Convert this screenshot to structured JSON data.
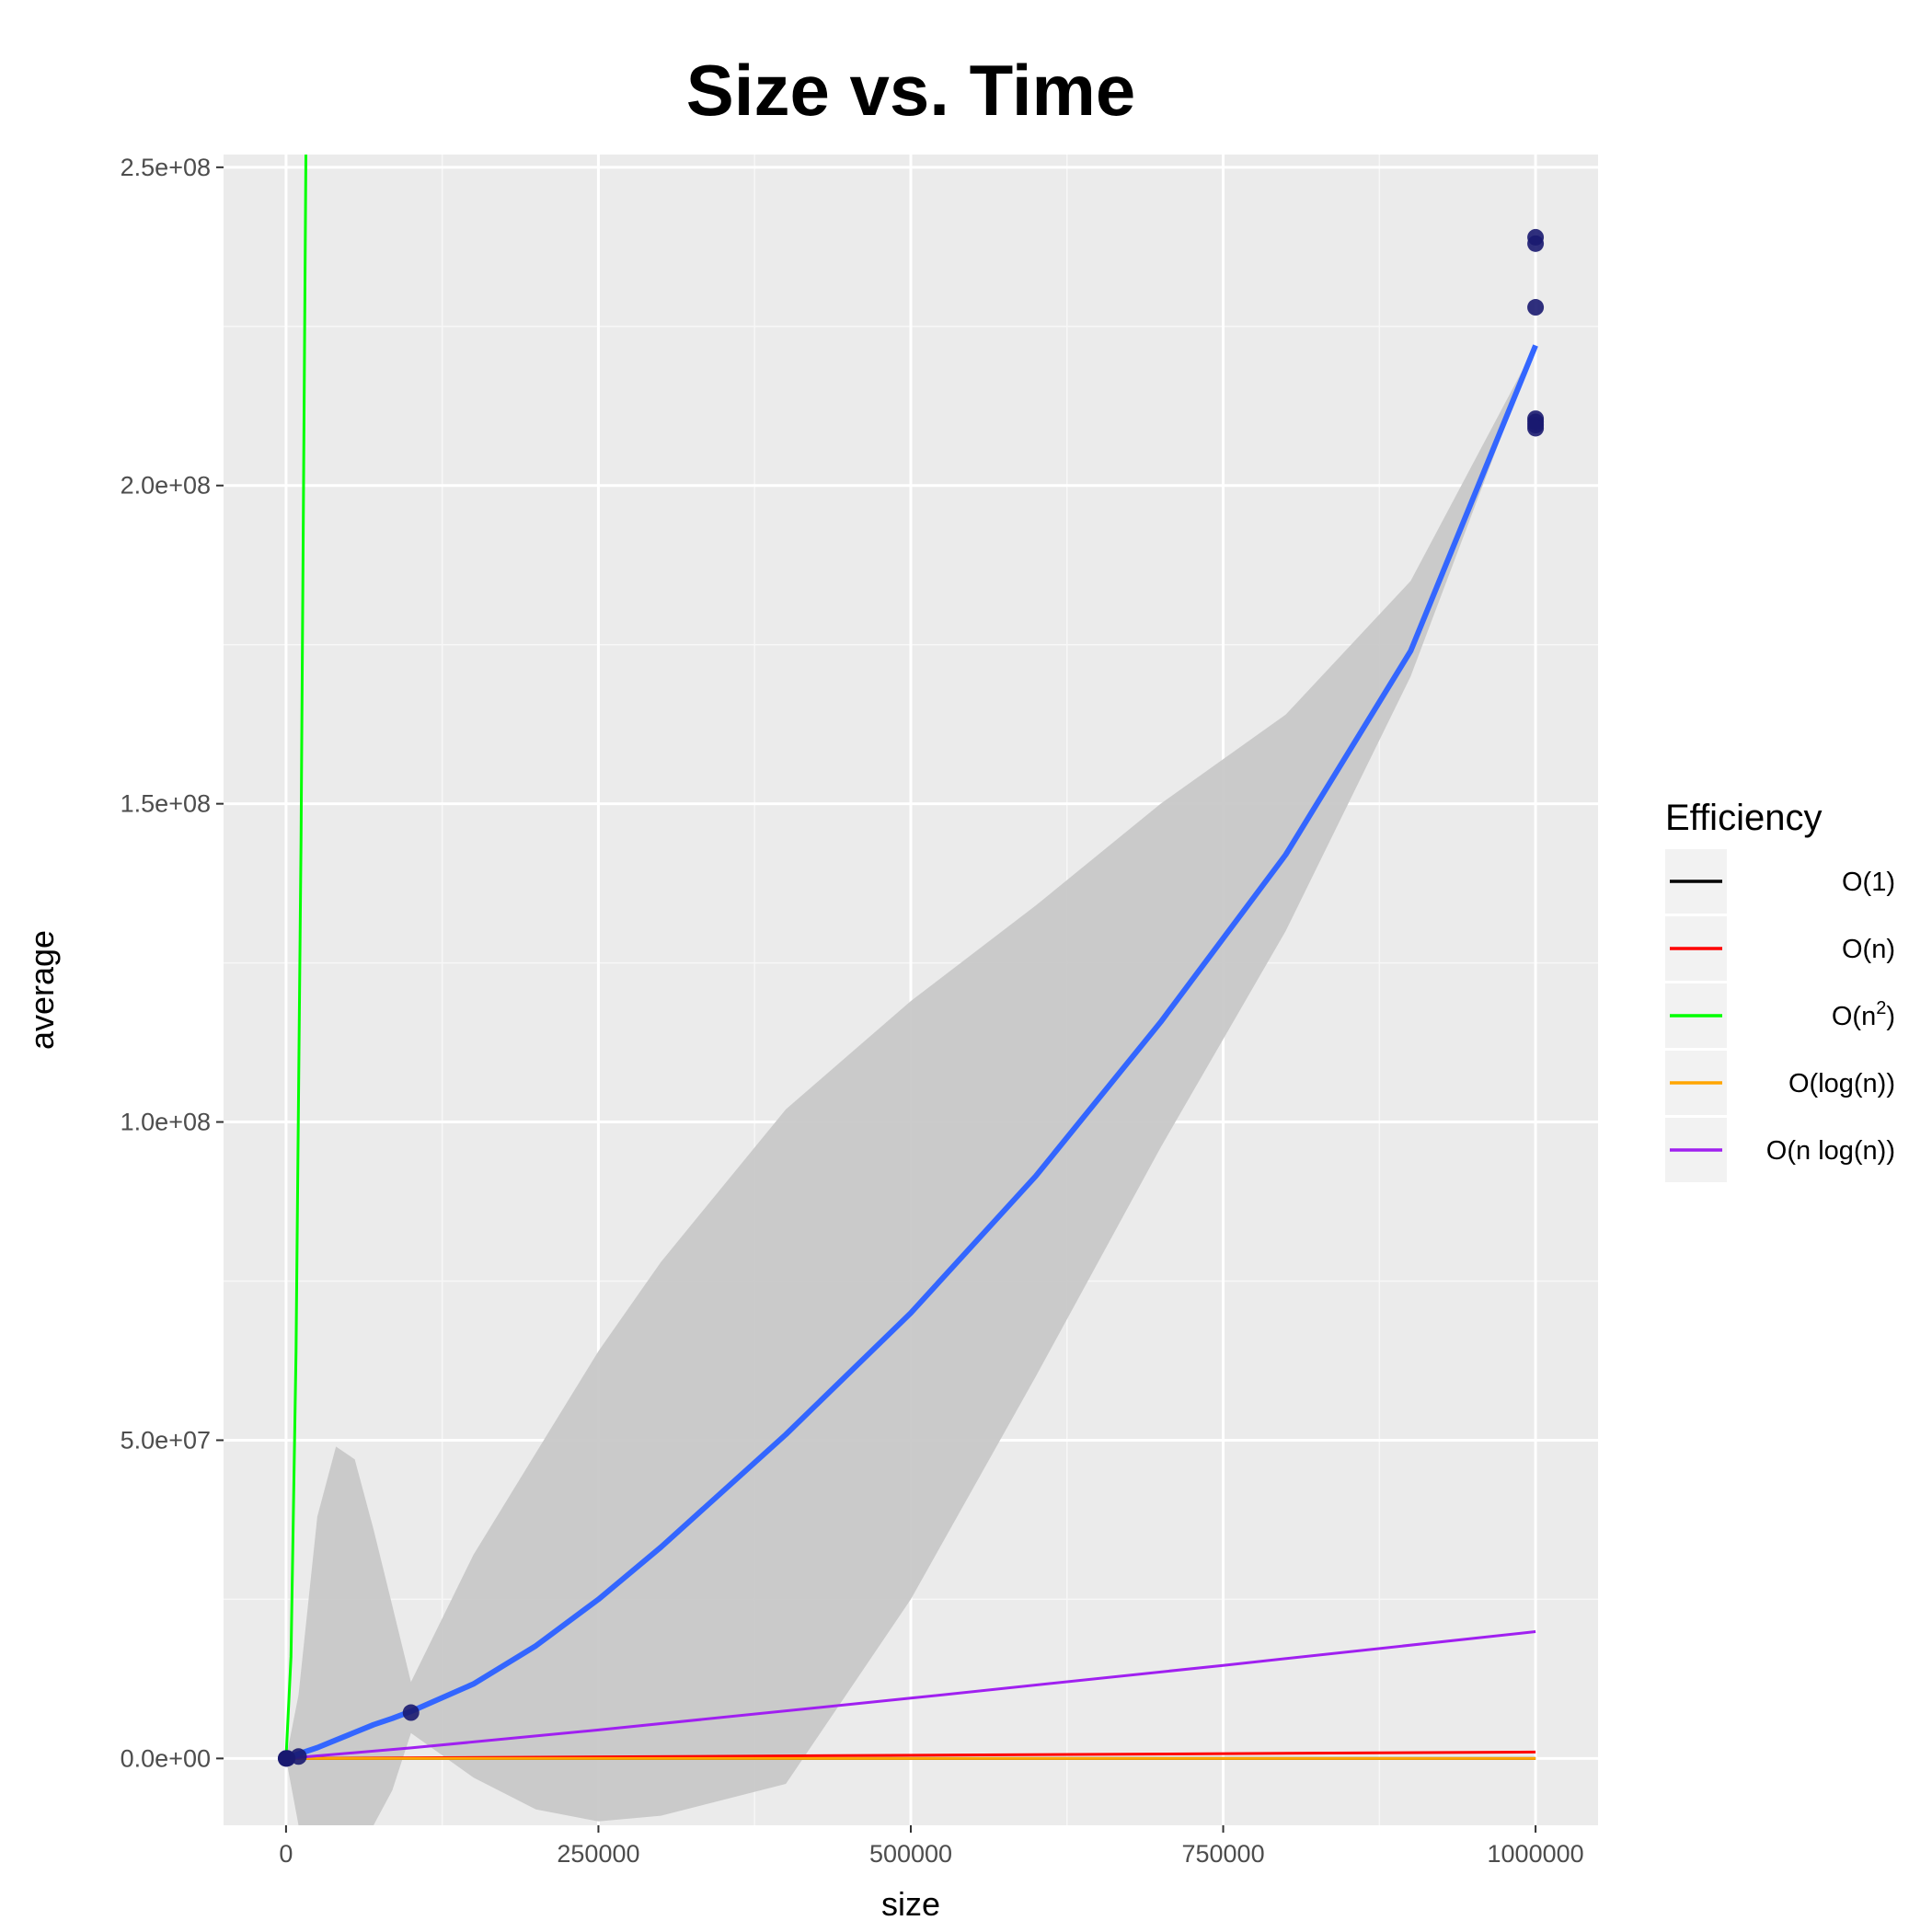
{
  "chart_data": {
    "type": "scatter",
    "title": "Size vs. Time",
    "xlabel": "size",
    "ylabel": "average",
    "xlim": [
      -50000,
      1050000
    ],
    "ylim": [
      -10500000,
      252000000
    ],
    "x_ticks": [
      0,
      250000,
      500000,
      750000,
      1000000
    ],
    "x_tick_labels": [
      "0",
      "250000",
      "500000",
      "750000",
      "1000000"
    ],
    "y_ticks": [
      0,
      50000000,
      100000000,
      150000000,
      200000000,
      250000000
    ],
    "y_tick_labels": [
      "0.0e+00",
      "5.0e+07",
      "1.0e+08",
      "1.5e+08",
      "2.0e+08",
      "2.5e+08"
    ],
    "grid": true,
    "legend": {
      "title": "Efficiency",
      "placement": "right",
      "entries": [
        {
          "label": "O(1)",
          "color": "#000000"
        },
        {
          "label": "O(n)",
          "color": "#ff0000"
        },
        {
          "label": "O(n",
          "sup": "2",
          "suffix": ")",
          "color": "#00ff00"
        },
        {
          "label": "O(log(n))",
          "color": "#ffa500"
        },
        {
          "label": "O(n log(n))",
          "color": "#a020f0"
        }
      ]
    },
    "points": {
      "color": "#191970",
      "x": [
        10,
        100,
        1000,
        10000,
        100000,
        1000000,
        1000000,
        1000000,
        1000000,
        1000000,
        1000000,
        1000000
      ],
      "y": [
        0,
        0,
        20000,
        300000,
        7200000,
        239000000,
        238000000,
        228000000,
        210500000,
        210000000,
        209500000,
        209000000
      ]
    },
    "smooth": {
      "color": "#3366ff",
      "band_color": "#c8c8c8",
      "x": [
        0,
        10000,
        25000,
        40000,
        55000,
        70000,
        85000,
        100000,
        150000,
        200000,
        250000,
        300000,
        400000,
        500000,
        600000,
        700000,
        800000,
        900000,
        1000000
      ],
      "y": [
        0,
        700000,
        1700000,
        2900000,
        4100000,
        5300000,
        6300000,
        7400000,
        11700000,
        17700000,
        25000000,
        33200000,
        50900000,
        70000000,
        91500000,
        115700000,
        142000000,
        174000000,
        222000000
      ],
      "upper": [
        0,
        10000000,
        38000000,
        49000000,
        47000000,
        36000000,
        24000000,
        12000000,
        32000000,
        48000000,
        64000000,
        78000000,
        102000000,
        119000000,
        134000000,
        150000000,
        164000000,
        185000000,
        222000000
      ],
      "lower": [
        0,
        -10500000,
        -10500000,
        -10500000,
        -10500000,
        -10500000,
        -5000000,
        4000000,
        -3000000,
        -8000000,
        -9900000,
        -9000000,
        -4000000,
        25000000,
        60000000,
        96000000,
        130000000,
        170000000,
        222000000
      ]
    },
    "reference_lines": [
      {
        "name": "O(1)",
        "color": "#000000",
        "x": [
          0,
          1000000
        ],
        "y": [
          1,
          1
        ]
      },
      {
        "name": "O(n)",
        "color": "#ff0000",
        "x": [
          0,
          1000000
        ],
        "y": [
          0,
          1000000
        ]
      },
      {
        "name": "O(n^2)",
        "color": "#00ff00",
        "x": [
          0,
          4000,
          8000,
          12000,
          15875
        ],
        "y": [
          0,
          16000000,
          64000000,
          144000000,
          252000000
        ]
      },
      {
        "name": "O(log(n))",
        "color": "#ffa500",
        "x": [
          1,
          1000000
        ],
        "y": [
          0,
          20
        ]
      },
      {
        "name": "O(n log(n))",
        "color": "#a020f0",
        "x": [
          1,
          100000,
          250000,
          500000,
          750000,
          1000000
        ],
        "y": [
          0,
          1660000,
          4480000,
          9470000,
          14620000,
          19930000
        ]
      }
    ]
  }
}
